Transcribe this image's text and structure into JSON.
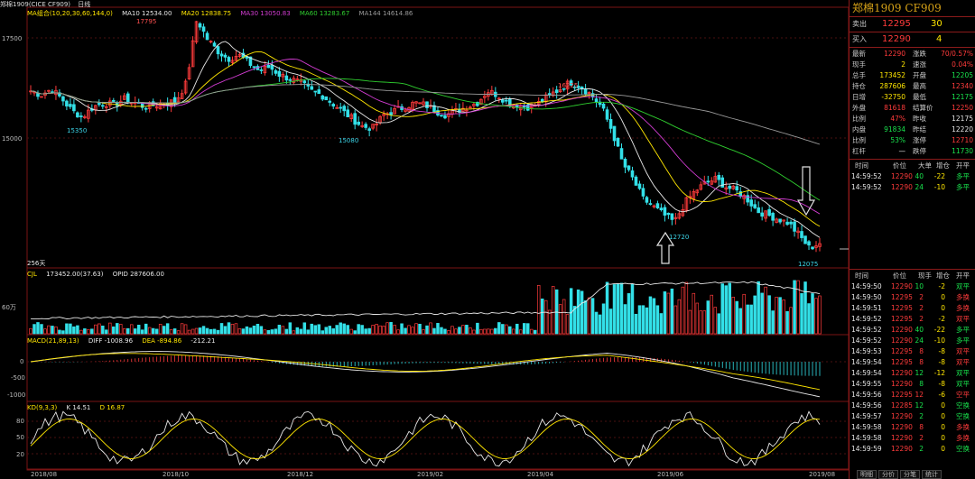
{
  "title_bar": {
    "product": "郑棉1909(CICE CF909)",
    "period": "日线",
    "ma_label": "MA组合(10,20,30,60,144,0)",
    "ma10": "MA10 12534.00",
    "ma20": "MA20 12838.75",
    "ma30": "MA30 13050.83",
    "ma60": "MA60 13283.67",
    "ma144": "MA144 14614.86"
  },
  "colors": {
    "up": "#ff3b3b",
    "down": "#33e0e8",
    "ma10": "#e8e8e8",
    "ma20": "#ffe600",
    "ma30": "#d23cd2",
    "ma60": "#2fcf2f",
    "ma144": "#9a9a9a",
    "panel_border": "#8b1a1a"
  },
  "price_axis": {
    "labels": [
      "17500",
      "15000"
    ]
  },
  "price_notes": {
    "high1": "17795",
    "low1": "15350",
    "low2": "15080",
    "high2": "16225",
    "low3": "12720",
    "low4": "12075",
    "days": "256天"
  },
  "volume_legend": {
    "cjl": "CJL",
    "cjl_value": "173452.00(37.63)",
    "opid": "OPID 287606.00",
    "axis_label": "60万"
  },
  "macd_legend": {
    "name": "MACD(21,89,13)",
    "diff": "DIFF -1008.96",
    "dea": "DEA -894.86",
    "macd": "-212.21",
    "axis": [
      "0",
      "-500",
      "-1000"
    ]
  },
  "kd_legend": {
    "name": "KD(9,3,3)",
    "k": "K 14.51",
    "d": "D 16.87",
    "axis": [
      "80",
      "50",
      "20"
    ]
  },
  "date_axis": [
    "2018/08",
    "2018/10",
    "2018/12",
    "2019/02",
    "2019/04",
    "2019/06",
    "2019/08"
  ],
  "chart_data": {
    "type": "candlestick",
    "series_price_path": [
      16000,
      15900,
      16050,
      15800,
      15500,
      15350,
      15600,
      15700,
      15650,
      15800,
      15700,
      15600,
      15650,
      15700,
      15750,
      16200,
      17795,
      17300,
      17000,
      16800,
      16900,
      16700,
      16500,
      16600,
      16400,
      16300,
      16200,
      16000,
      15900,
      15700,
      15500,
      15300,
      15100,
      15080,
      15400,
      15500,
      15600,
      15700,
      15650,
      15500,
      15400,
      15500,
      15600,
      15700,
      16000,
      15900,
      15700,
      15650,
      15600,
      15700,
      15900,
      16050,
      16225,
      16100,
      15900,
      15600,
      15000,
      14200,
      13800,
      13300,
      13100,
      12900,
      12720,
      13200,
      13500,
      13700,
      13800,
      13600,
      13500,
      13300,
      13000,
      12900,
      12800,
      12700,
      12400,
      12075,
      12200
    ],
    "volume_axis_label": "60万",
    "ma_series": [
      "MA10",
      "MA20",
      "MA30",
      "MA60",
      "MA144"
    ]
  },
  "panel": {
    "title": "郑棉1909  CF909",
    "sell": {
      "label": "卖出",
      "price": "12295",
      "qty": "30"
    },
    "buy": {
      "label": "买入",
      "price": "12290",
      "qty": "4"
    },
    "stats": [
      {
        "l1": "最新",
        "v1": "12290",
        "c1": "red",
        "l2": "涨跌",
        "v2": "70/0.57%",
        "c2": "red"
      },
      {
        "l1": "现手",
        "v1": "2",
        "c1": "yellow",
        "l2": "速涨",
        "v2": "0.04%",
        "c2": "red"
      },
      {
        "l1": "总手",
        "v1": "173452",
        "c1": "yellow",
        "l2": "开盘",
        "v2": "12205",
        "c2": "green"
      },
      {
        "l1": "持仓",
        "v1": "287606",
        "c1": "yellow",
        "l2": "最高",
        "v2": "12340",
        "c2": "red"
      },
      {
        "l1": "日增",
        "v1": "-32750",
        "c1": "yellow",
        "l2": "最低",
        "v2": "12175",
        "c2": "green"
      },
      {
        "l1": "外盘",
        "v1": "81618",
        "c1": "red",
        "l2": "结算价",
        "v2": "12250",
        "c2": "red"
      },
      {
        "l1": "比例",
        "v1": "47%",
        "c1": "red",
        "l2": "昨收",
        "v2": "12175",
        "c2": "white"
      },
      {
        "l1": "内盘",
        "v1": "91834",
        "c1": "green",
        "l2": "昨结",
        "v2": "12220",
        "c2": "white"
      },
      {
        "l1": "比例",
        "v1": "53%",
        "c1": "green",
        "l2": "涨停",
        "v2": "12710",
        "c2": "red"
      },
      {
        "l1": "杠杆",
        "v1": "—",
        "c1": "white",
        "l2": "跌停",
        "v2": "11730",
        "c2": "green"
      }
    ],
    "tick_header1": {
      "time": "时间",
      "price": "价位",
      "big": "大单",
      "inc": "增仓",
      "open": "开平"
    },
    "ticks1": [
      {
        "time": "14:59:52",
        "price": "12290",
        "qty": "40",
        "inc": "-22",
        "flag": "多平"
      },
      {
        "time": "14:59:52",
        "price": "12290",
        "qty": "24",
        "inc": "-10",
        "flag": "多平"
      }
    ],
    "tick_header2": {
      "time": "时间",
      "price": "价位",
      "now": "现手",
      "inc": "增仓",
      "open": "开平"
    },
    "ticks2": [
      {
        "time": "14:59:50",
        "price": "12290",
        "qty": "10",
        "inc": "-2",
        "flag": "双平",
        "qc": "green",
        "fc": "green"
      },
      {
        "time": "14:59:50",
        "price": "12295",
        "qty": "2",
        "inc": "0",
        "flag": "多换",
        "qc": "red",
        "fc": "red"
      },
      {
        "time": "14:59:51",
        "price": "12295",
        "qty": "2",
        "inc": "0",
        "flag": "多换",
        "qc": "red",
        "fc": "red"
      },
      {
        "time": "14:59:52",
        "price": "12295",
        "qty": "2",
        "inc": "-2",
        "flag": "双平",
        "qc": "red",
        "fc": "red"
      },
      {
        "time": "14:59:52",
        "price": "12290",
        "qty": "40",
        "inc": "-22",
        "flag": "多平",
        "qc": "green",
        "fc": "green"
      },
      {
        "time": "14:59:52",
        "price": "12290",
        "qty": "24",
        "inc": "-10",
        "flag": "多平",
        "qc": "green",
        "fc": "green"
      },
      {
        "time": "14:59:53",
        "price": "12295",
        "qty": "8",
        "inc": "-8",
        "flag": "双平",
        "qc": "red",
        "fc": "red"
      },
      {
        "time": "14:59:54",
        "price": "12295",
        "qty": "8",
        "inc": "-8",
        "flag": "双平",
        "qc": "red",
        "fc": "red"
      },
      {
        "time": "14:59:54",
        "price": "12290",
        "qty": "12",
        "inc": "-12",
        "flag": "双平",
        "qc": "green",
        "fc": "green"
      },
      {
        "time": "14:59:55",
        "price": "12290",
        "qty": "8",
        "inc": "-8",
        "flag": "双平",
        "qc": "green",
        "fc": "green"
      },
      {
        "time": "14:59:56",
        "price": "12295",
        "qty": "12",
        "inc": "-6",
        "flag": "空平",
        "qc": "red",
        "fc": "red"
      },
      {
        "time": "14:59:56",
        "price": "12285",
        "qty": "12",
        "inc": "0",
        "flag": "空换",
        "qc": "green",
        "fc": "green"
      },
      {
        "time": "14:59:57",
        "price": "12290",
        "qty": "2",
        "inc": "0",
        "flag": "空换",
        "qc": "green",
        "fc": "green"
      },
      {
        "time": "14:59:58",
        "price": "12290",
        "qty": "8",
        "inc": "0",
        "flag": "多换",
        "qc": "red",
        "fc": "red"
      },
      {
        "time": "14:59:58",
        "price": "12290",
        "qty": "2",
        "inc": "0",
        "flag": "多换",
        "qc": "red",
        "fc": "red"
      },
      {
        "time": "14:59:59",
        "price": "12290",
        "qty": "2",
        "inc": "0",
        "flag": "空换",
        "qc": "green",
        "fc": "green"
      }
    ],
    "tabs": [
      "明细",
      "分价",
      "分笔",
      "统计"
    ]
  }
}
